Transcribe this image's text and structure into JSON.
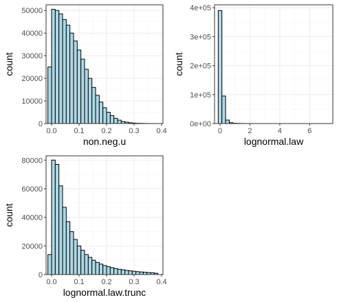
{
  "colors": {
    "bar_fill": "#add8e6",
    "bar_stroke": "#000000",
    "panel_border": "#333333",
    "grid_major": "#ebebeb",
    "grid_minor": "#f5f5f5"
  },
  "chart_data": [
    {
      "type": "bar",
      "xlabel": "non.neg.u",
      "ylabel": "count",
      "bin_width": 0.0133,
      "xlim": [
        -0.02,
        0.405
      ],
      "ylim": [
        0,
        52500
      ],
      "x_ticks": [
        0.0,
        0.1,
        0.2,
        0.3,
        0.4
      ],
      "x_tick_labels": [
        "0.0",
        "0.1",
        "0.2",
        "0.3",
        "0.4"
      ],
      "y_ticks": [
        0,
        10000,
        20000,
        30000,
        40000,
        50000
      ],
      "y_tick_labels": [
        "0",
        "10000",
        "20000",
        "30000",
        "40000",
        "50000"
      ],
      "bin_centers": [
        -0.0067,
        0.0067,
        0.02,
        0.0333,
        0.0467,
        0.06,
        0.0733,
        0.0867,
        0.1,
        0.1133,
        0.1267,
        0.14,
        0.1533,
        0.1667,
        0.18,
        0.1933,
        0.2067,
        0.22,
        0.2333,
        0.2467,
        0.26,
        0.2733,
        0.2867,
        0.3,
        0.3133,
        0.3267,
        0.34,
        0.3533,
        0.3667,
        0.38
      ],
      "values": [
        25000,
        50500,
        50000,
        48500,
        46000,
        43500,
        40000,
        36500,
        32500,
        28500,
        24000,
        20000,
        16000,
        12500,
        9500,
        7000,
        5000,
        3500,
        2300,
        1500,
        900,
        600,
        350,
        200,
        120,
        80,
        40,
        20,
        10,
        5
      ],
      "grid": true
    },
    {
      "type": "bar",
      "xlabel": "lognormal.law",
      "ylabel": "count",
      "bin_width": 0.247,
      "xlim": [
        -0.37,
        7.55
      ],
      "ylim": [
        0,
        410000
      ],
      "x_ticks": [
        0,
        2,
        4,
        6
      ],
      "x_tick_labels": [
        "0",
        "2",
        "4",
        "6"
      ],
      "y_ticks": [
        0,
        100000,
        200000,
        300000,
        400000
      ],
      "y_tick_labels": [
        "0e+00",
        "1e+05",
        "2e+05",
        "3e+05",
        "4e+05"
      ],
      "bin_centers": [
        0.0,
        0.247,
        0.494,
        0.741,
        0.988,
        1.235,
        1.482,
        1.729,
        1.976,
        2.223,
        2.47,
        2.717,
        2.964,
        3.211,
        3.458,
        3.705,
        3.952,
        4.199,
        4.446,
        4.693,
        4.94,
        5.187,
        5.434,
        5.681,
        5.928,
        6.175,
        6.422,
        6.669,
        6.916,
        7.163
      ],
      "values": [
        390000,
        95000,
        12000,
        3000,
        1000,
        500,
        250,
        120,
        60,
        30,
        20,
        10,
        5,
        3,
        2,
        1,
        1,
        1,
        0,
        0,
        0,
        0,
        0,
        0,
        0,
        0,
        0,
        0,
        0,
        1
      ],
      "grid": true
    },
    {
      "type": "bar",
      "xlabel": "lognormal.law.trunc",
      "ylabel": "count",
      "bin_width": 0.0133,
      "xlim": [
        -0.02,
        0.405
      ],
      "ylim": [
        0,
        83000
      ],
      "x_ticks": [
        0.0,
        0.1,
        0.2,
        0.3,
        0.4
      ],
      "x_tick_labels": [
        "0.0",
        "0.1",
        "0.2",
        "0.3",
        "0.4"
      ],
      "y_ticks": [
        0,
        20000,
        40000,
        60000,
        80000
      ],
      "y_tick_labels": [
        "0",
        "20000",
        "40000",
        "60000",
        "80000"
      ],
      "bin_centers": [
        -0.0067,
        0.0067,
        0.02,
        0.0333,
        0.0467,
        0.06,
        0.0733,
        0.0867,
        0.1,
        0.1133,
        0.1267,
        0.14,
        0.1533,
        0.1667,
        0.18,
        0.1933,
        0.2067,
        0.22,
        0.2333,
        0.2467,
        0.26,
        0.2733,
        0.2867,
        0.3,
        0.3133,
        0.3267,
        0.34,
        0.3533,
        0.3667,
        0.38
      ],
      "values": [
        14000,
        80000,
        77000,
        62000,
        47000,
        37000,
        30000,
        24500,
        20000,
        17000,
        14000,
        12000,
        10000,
        8500,
        7300,
        6300,
        5500,
        4800,
        4200,
        3700,
        3300,
        2900,
        2600,
        2300,
        2050,
        1800,
        1600,
        1400,
        1250,
        900
      ],
      "grid": true
    }
  ]
}
